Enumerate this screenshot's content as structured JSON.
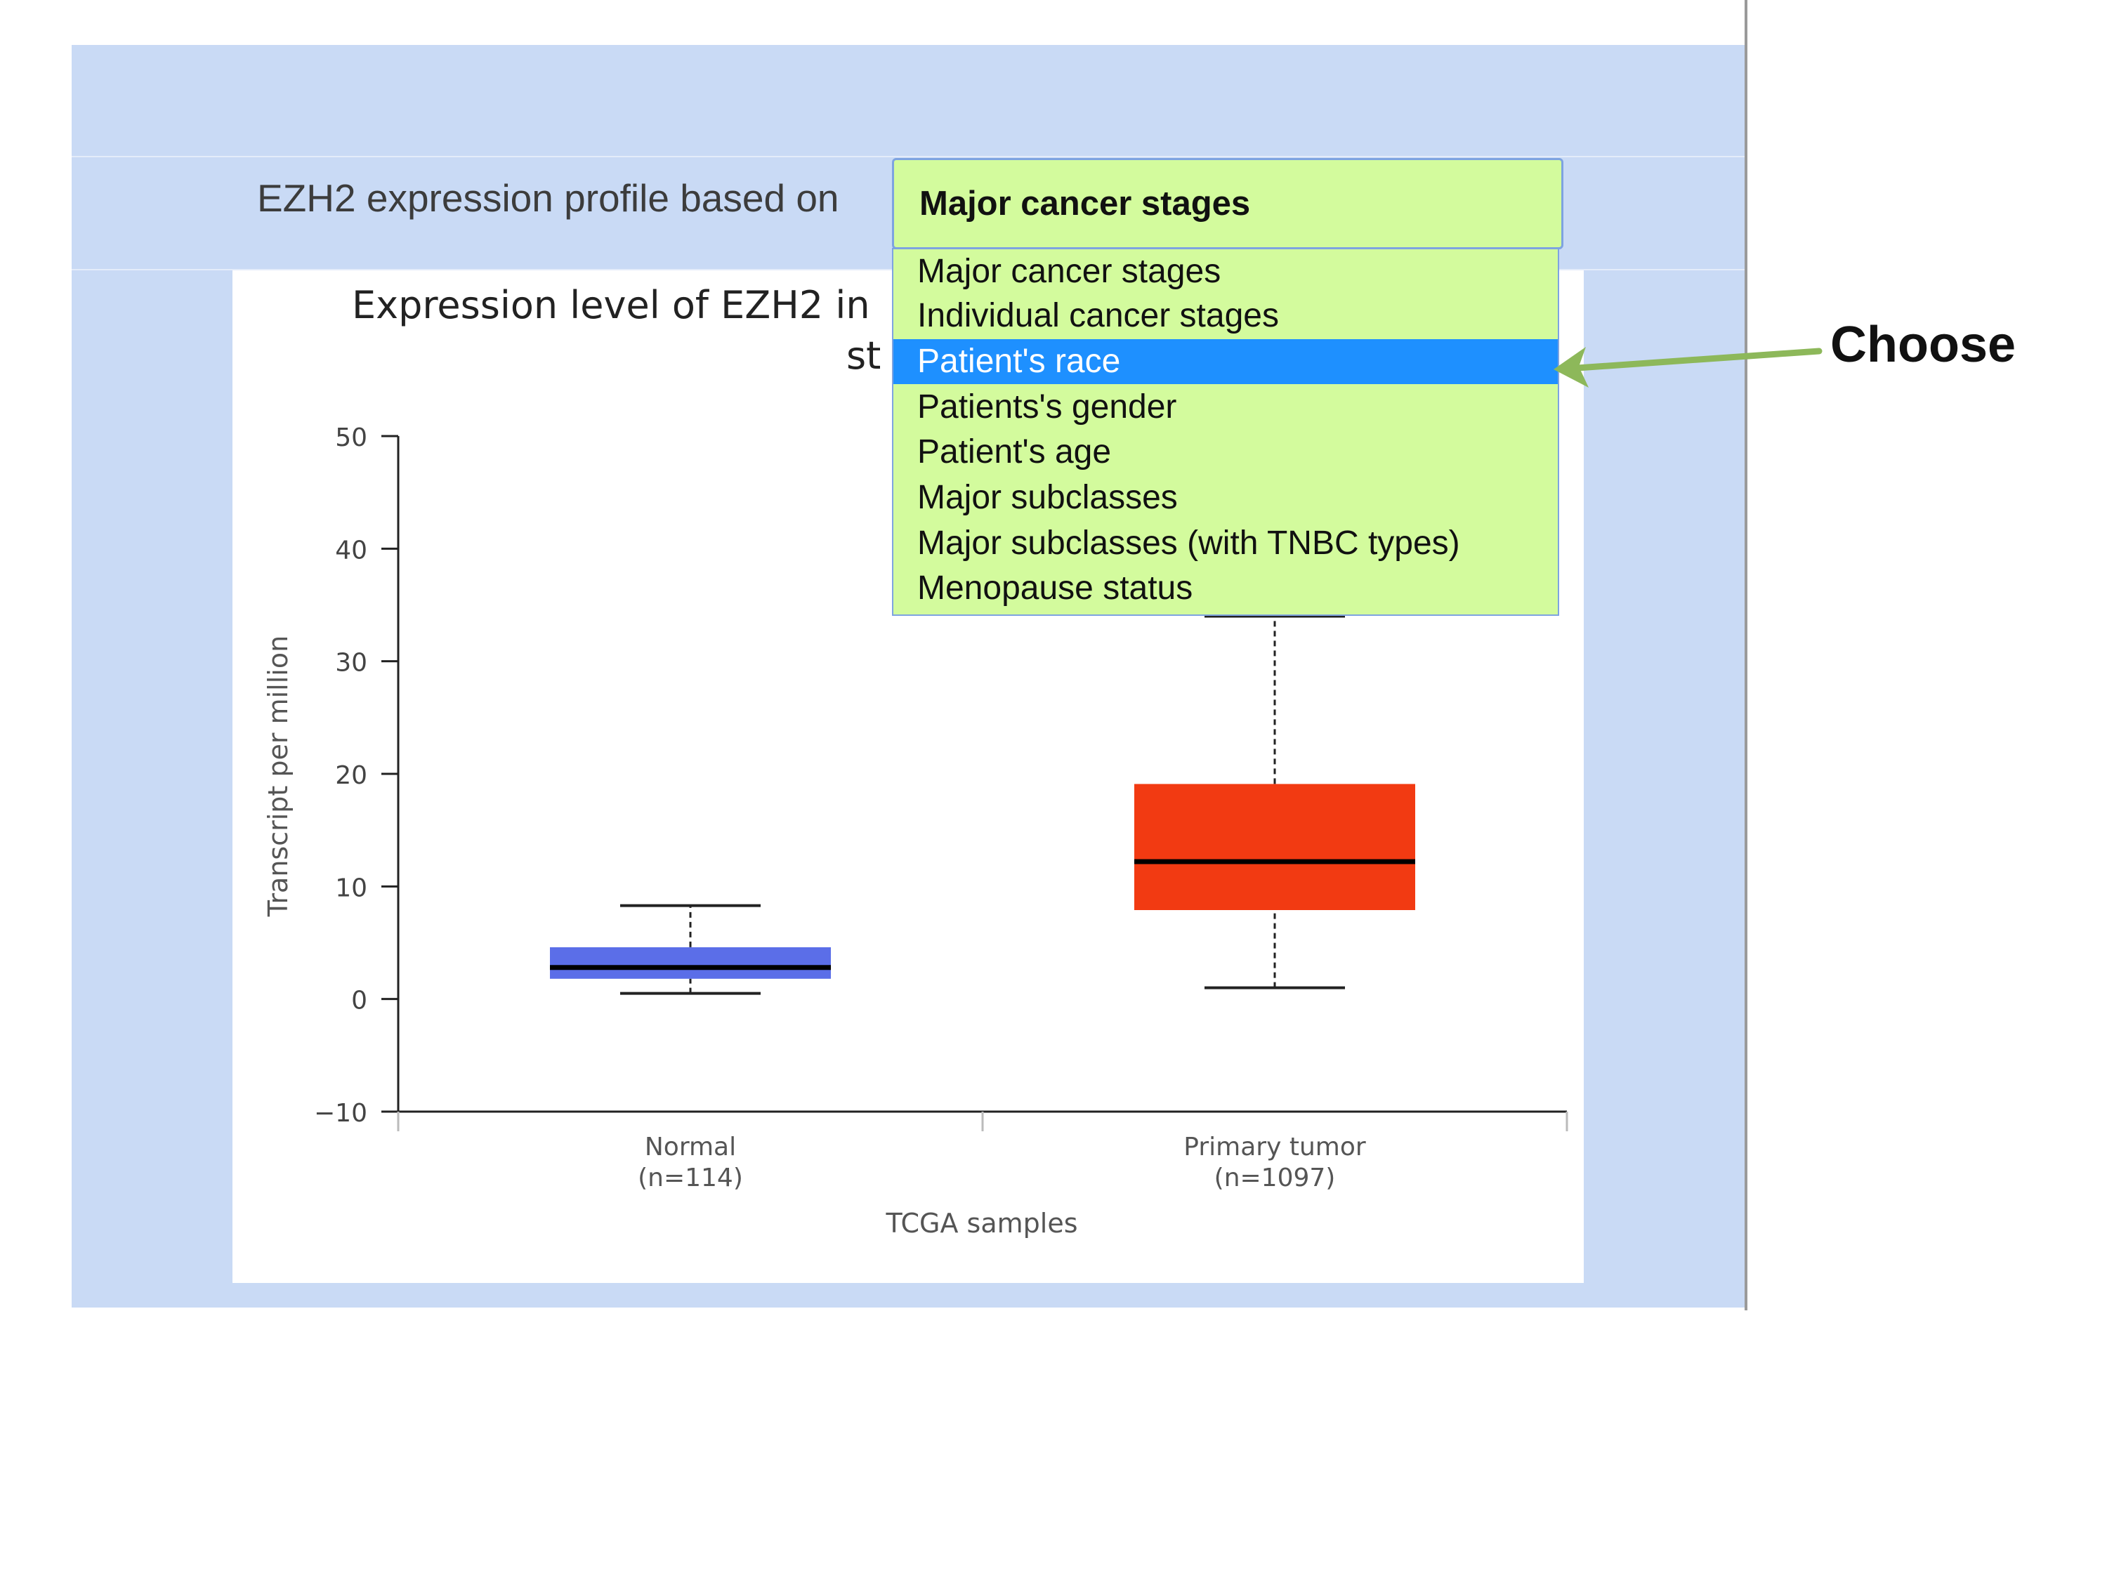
{
  "form": {
    "prompt": "EZH2 expression profile based on",
    "selected": "Major cancer stages"
  },
  "dropdown": {
    "options": [
      "Major cancer stages",
      "Individual cancer stages",
      "Patient's race",
      "Patients's gender",
      "Patient's age",
      "Major subclasses",
      "Major subclasses (with TNBC types)",
      "Menopause status"
    ],
    "highlighted_index": 2
  },
  "annotation": {
    "label": "Choose",
    "arrow_color": "#8db85a"
  },
  "chart_data": {
    "type": "boxplot",
    "title_visible": "Expression level of EZH2 in",
    "title_fragment": "st",
    "xlabel": "TCGA samples",
    "ylabel": "Transcript per million",
    "ylim": [
      -10,
      50
    ],
    "yticks": [
      -10,
      0,
      10,
      20,
      30,
      40,
      50
    ],
    "categories": [
      {
        "name": "Normal",
        "n": "(n=114)",
        "color": "#5b6ee8",
        "whisker_low": 0.5,
        "q1": 1.8,
        "median": 2.8,
        "q3": 4.6,
        "whisker_high": 8.3
      },
      {
        "name": "Primary tumor",
        "n": "(n=1097)",
        "color": "#f23a12",
        "whisker_low": 1.0,
        "q1": 7.9,
        "median": 12.2,
        "q3": 19.1,
        "whisker_high": 34.0
      }
    ]
  }
}
